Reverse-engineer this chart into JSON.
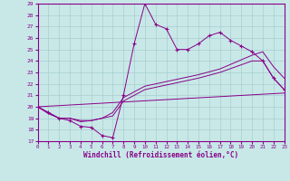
{
  "xlabel": "Windchill (Refroidissement éolien,°C)",
  "xlim": [
    0,
    23
  ],
  "ylim": [
    17,
    29
  ],
  "xticks": [
    0,
    1,
    2,
    3,
    4,
    5,
    6,
    7,
    8,
    9,
    10,
    11,
    12,
    13,
    14,
    15,
    16,
    17,
    18,
    19,
    20,
    21,
    22,
    23
  ],
  "yticks": [
    17,
    18,
    19,
    20,
    21,
    22,
    23,
    24,
    25,
    26,
    27,
    28,
    29
  ],
  "bg_color": "#c8e8e8",
  "grid_color": "#a8cece",
  "line_color": "#880088",
  "curve1_x": [
    0,
    1,
    2,
    3,
    4,
    5,
    6,
    7,
    8,
    9,
    10,
    11,
    12,
    13,
    14,
    15,
    16,
    17,
    18,
    19,
    20,
    21,
    22,
    23
  ],
  "curve1_y": [
    20.0,
    19.5,
    19.0,
    18.8,
    18.3,
    18.2,
    17.5,
    17.3,
    21.0,
    25.5,
    29.0,
    27.2,
    26.8,
    25.0,
    25.0,
    25.5,
    26.2,
    26.5,
    25.8,
    25.3,
    24.8,
    24.0,
    22.5,
    21.5
  ],
  "curve2_x": [
    0,
    1,
    2,
    3,
    4,
    5,
    6,
    7,
    8,
    10,
    15,
    17,
    20,
    21,
    22,
    23
  ],
  "curve2_y": [
    20.0,
    19.5,
    19.0,
    19.0,
    18.7,
    18.8,
    19.0,
    19.2,
    20.5,
    21.5,
    22.5,
    23.0,
    24.0,
    24.0,
    22.5,
    21.5
  ],
  "curve3_x": [
    0,
    1,
    2,
    3,
    4,
    5,
    6,
    7,
    8,
    10,
    15,
    17,
    20,
    21,
    22,
    23
  ],
  "curve3_y": [
    20.0,
    19.4,
    19.0,
    19.0,
    18.8,
    18.8,
    19.0,
    19.5,
    20.8,
    21.8,
    22.8,
    23.3,
    24.5,
    24.8,
    23.5,
    22.5
  ],
  "curve4_x": [
    0,
    23
  ],
  "curve4_y": [
    20.0,
    21.2
  ]
}
